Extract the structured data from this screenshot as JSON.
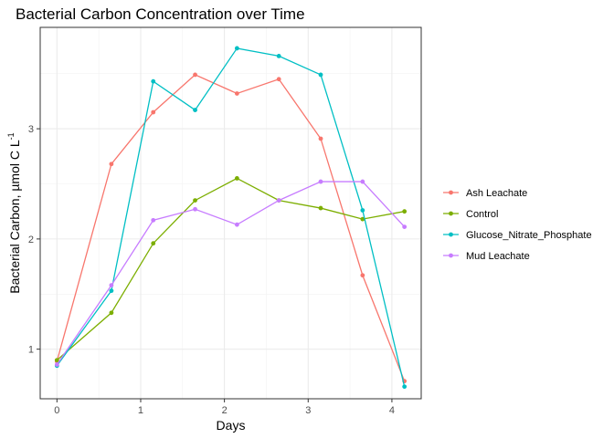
{
  "chart_data": {
    "type": "line",
    "title": "Bacterial Carbon Concentration over Time",
    "xlabel": "Days",
    "ylabel": "Bacterial Carbon, µmol C L",
    "ylabel_superscript": "-1",
    "x": [
      0,
      0.65,
      1.15,
      1.65,
      2.15,
      2.65,
      3.15,
      3.65,
      4.15
    ],
    "xlim": [
      -0.2,
      4.35
    ],
    "ylim": [
      0.55,
      3.92
    ],
    "xticks": [
      0,
      1,
      2,
      3,
      4
    ],
    "yticks": [
      1,
      2,
      3
    ],
    "grid": true,
    "legend_position": "right",
    "series": [
      {
        "name": "Ash Leachate",
        "color": "#F8766D",
        "values": [
          0.89,
          2.68,
          3.15,
          3.49,
          3.32,
          3.45,
          2.91,
          1.67,
          0.71
        ]
      },
      {
        "name": "Control",
        "color": "#7CAE00",
        "values": [
          0.9,
          1.33,
          1.96,
          2.35,
          2.55,
          2.35,
          2.28,
          2.18,
          2.25
        ]
      },
      {
        "name": "Glucose_Nitrate_Phosphate",
        "color": "#00BFC4",
        "values": [
          0.85,
          1.53,
          3.43,
          3.17,
          3.73,
          3.66,
          3.49,
          2.26,
          0.66
        ]
      },
      {
        "name": "Mud Leachate",
        "color": "#C77CFF",
        "values": [
          0.86,
          1.58,
          2.17,
          2.27,
          2.13,
          2.35,
          2.52,
          2.52,
          2.11
        ]
      }
    ]
  }
}
